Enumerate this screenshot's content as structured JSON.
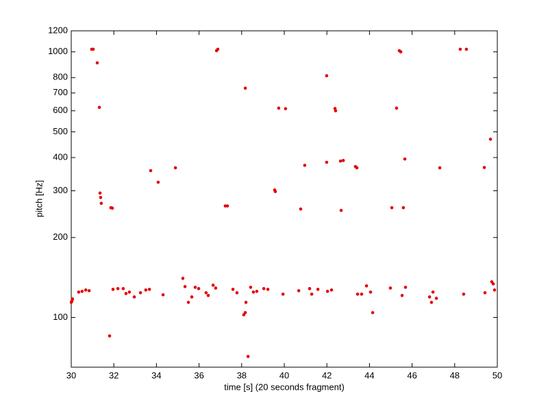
{
  "chart_data": {
    "type": "scatter",
    "xlabel": "time [s] (20 seconds fragment)",
    "ylabel": "pitch [Hz]",
    "xlim": [
      30,
      50
    ],
    "xticks": [
      30,
      32,
      34,
      36,
      38,
      40,
      42,
      44,
      46,
      48,
      50
    ],
    "ylim": [
      65,
      1200
    ],
    "yticks": [
      100,
      200,
      300,
      400,
      500,
      600,
      700,
      800,
      1000,
      1200
    ],
    "log_y": true,
    "grid": false,
    "series": [
      {
        "color": "#e60000",
        "x": [
          30.96,
          31.03,
          31.22,
          31.32,
          31.35,
          31.38,
          31.41,
          31.86,
          31.93,
          33.73,
          34.08,
          34.89,
          36.82,
          36.88,
          37.23,
          37.33,
          38.17,
          39.55,
          39.58,
          39.74,
          40.06,
          40.77,
          40.96,
          41.99,
          41.99,
          42.38,
          42.41,
          42.64,
          42.77,
          42.67,
          43.34,
          43.41,
          45.05,
          45.27,
          45.4,
          45.47,
          45.59,
          45.66,
          47.3,
          48.26,
          48.55,
          49.39,
          49.68,
          30.0,
          30.03,
          30.06,
          30.35,
          30.51,
          30.68,
          30.84,
          31.8,
          31.96,
          32.19,
          32.44,
          32.57,
          32.73,
          32.96,
          33.25,
          33.5,
          33.67,
          34.31,
          35.24,
          35.34,
          35.5,
          35.66,
          35.82,
          35.98,
          36.33,
          36.43,
          36.66,
          36.78,
          37.59,
          37.78,
          38.1,
          38.17,
          38.2,
          38.3,
          38.42,
          38.55,
          38.71,
          39.04,
          39.23,
          39.94,
          40.68,
          41.19,
          41.29,
          41.58,
          42.03,
          42.22,
          43.44,
          43.63,
          43.86,
          44.05,
          44.15,
          44.98,
          45.53,
          45.69,
          46.82,
          46.91,
          46.98,
          47.14,
          48.42,
          49.42,
          49.74,
          49.81,
          49.87
        ],
        "values": [
          1023,
          1023,
          909,
          618,
          294,
          283,
          269,
          259,
          258,
          357,
          323,
          366,
          1010,
          1023,
          263,
          263,
          730,
          302,
          298,
          614,
          611,
          256,
          374,
          813,
          384,
          612,
          600,
          388,
          390,
          253,
          370,
          366,
          259,
          614,
          1010,
          1000,
          259,
          395,
          366,
          1023,
          1023,
          367,
          469,
          114.0,
          115.3,
          117.4,
          124.6,
          125.4,
          126.9,
          126.1,
          85.2,
          127.6,
          128.4,
          128.4,
          123.1,
          124.6,
          119.5,
          123.9,
          126.9,
          127.6,
          121.7,
          140.4,
          130.7,
          114.0,
          119.5,
          129.9,
          128.4,
          123.9,
          121.0,
          132.3,
          129.1,
          127.6,
          123.9,
          102.4,
          104.3,
          114.0,
          71.3,
          129.9,
          124.6,
          125.4,
          128.4,
          127.6,
          122.4,
          126.1,
          128.4,
          122.4,
          127.6,
          125.4,
          126.9,
          122.4,
          122.4,
          131.5,
          124.6,
          104.3,
          129.1,
          121.0,
          129.9,
          119.5,
          114.0,
          124.6,
          118.1,
          122.4,
          123.9,
          136.2,
          133.8,
          126.9
        ]
      }
    ]
  }
}
